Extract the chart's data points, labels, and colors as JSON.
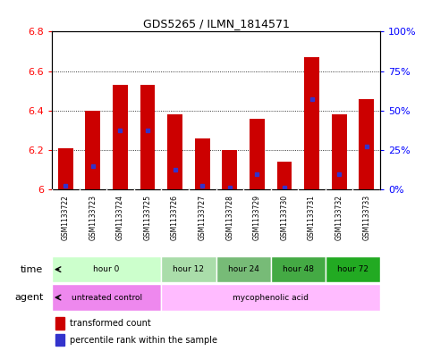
{
  "title": "GDS5265 / ILMN_1814571",
  "samples": [
    "GSM1133722",
    "GSM1133723",
    "GSM1133724",
    "GSM1133725",
    "GSM1133726",
    "GSM1133727",
    "GSM1133728",
    "GSM1133729",
    "GSM1133730",
    "GSM1133731",
    "GSM1133732",
    "GSM1133733"
  ],
  "red_top": [
    6.21,
    6.4,
    6.53,
    6.53,
    6.38,
    6.26,
    6.2,
    6.36,
    6.14,
    6.67,
    6.38,
    6.46
  ],
  "blue_pos": [
    6.02,
    6.12,
    6.3,
    6.3,
    6.1,
    6.02,
    6.01,
    6.08,
    6.01,
    6.46,
    6.08,
    6.22
  ],
  "ymin": 6.0,
  "ymax": 6.8,
  "yticks_left": [
    6.0,
    6.2,
    6.4,
    6.6,
    6.8
  ],
  "ytick_labels_left": [
    "6",
    "6.2",
    "6.4",
    "6.6",
    "6.8"
  ],
  "yticks_right_vals": [
    0,
    25,
    50,
    75,
    100
  ],
  "ytick_labels_right": [
    "0%",
    "25%",
    "50%",
    "75%",
    "100%"
  ],
  "bar_color": "#cc0000",
  "blue_color": "#3333cc",
  "time_groups": [
    {
      "label": "hour 0",
      "start": 0,
      "end": 4,
      "color": "#ccffcc"
    },
    {
      "label": "hour 12",
      "start": 4,
      "end": 6,
      "color": "#aaddaa"
    },
    {
      "label": "hour 24",
      "start": 6,
      "end": 8,
      "color": "#77bb77"
    },
    {
      "label": "hour 48",
      "start": 8,
      "end": 10,
      "color": "#44aa44"
    },
    {
      "label": "hour 72",
      "start": 10,
      "end": 12,
      "color": "#22aa22"
    }
  ],
  "agent_groups": [
    {
      "label": "untreated control",
      "start": 0,
      "end": 4,
      "color": "#ee88ee"
    },
    {
      "label": "mycophenolic acid",
      "start": 4,
      "end": 12,
      "color": "#ffbbff"
    }
  ],
  "legend_red": "transformed count",
  "legend_blue": "percentile rank within the sample",
  "bar_width": 0.55,
  "base": 6.0
}
